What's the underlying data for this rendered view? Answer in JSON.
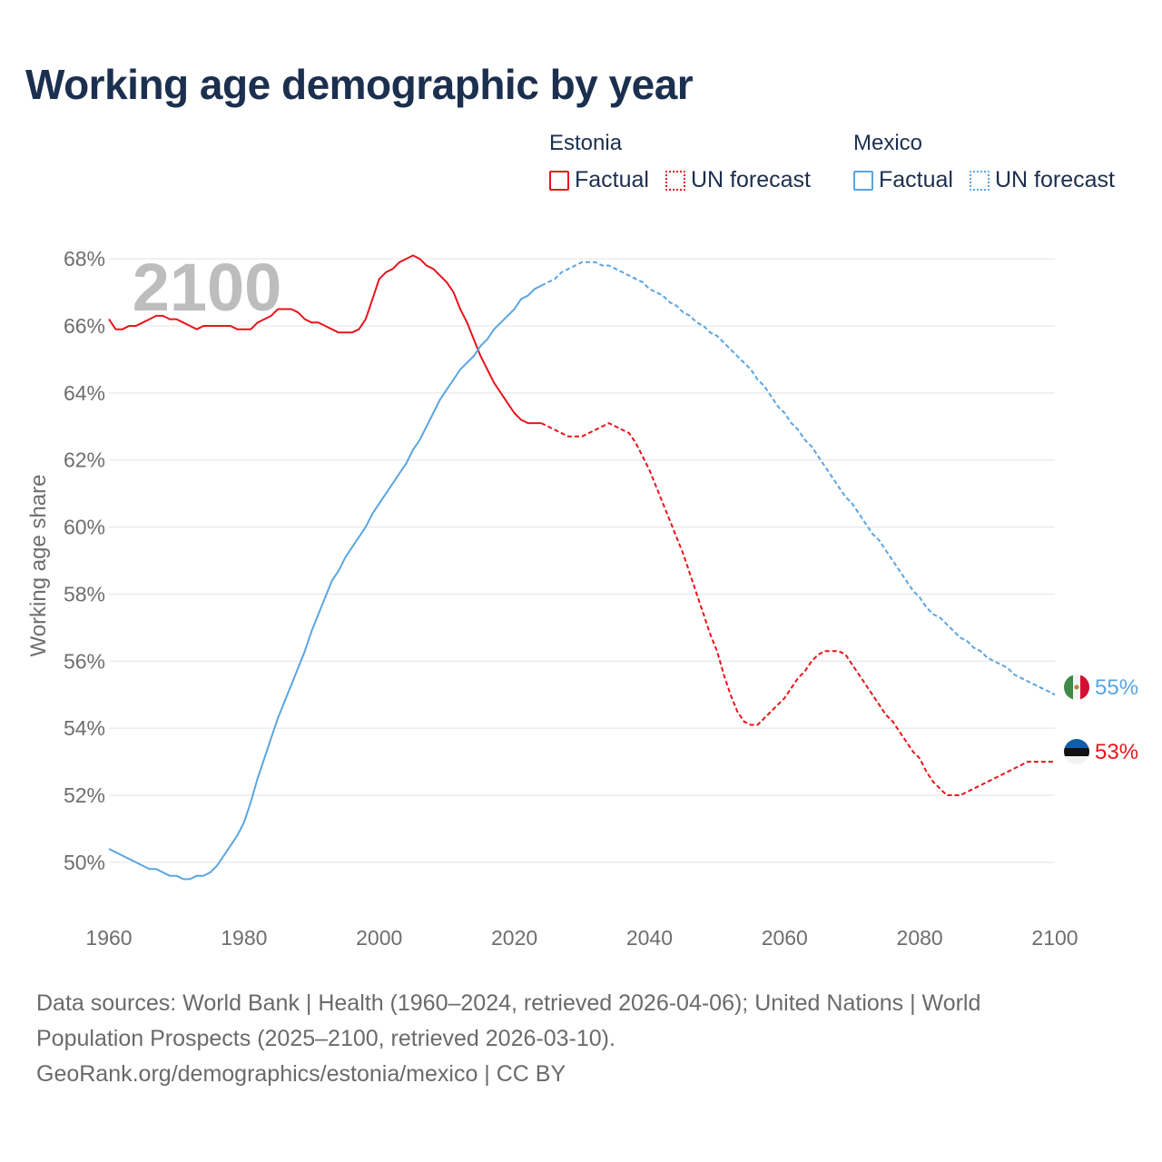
{
  "title": "Working age demographic by year",
  "year_label": "2100",
  "legend": [
    {
      "country": "Estonia",
      "color": "#e8141c",
      "items": [
        {
          "style": "solid",
          "label": "Factual"
        },
        {
          "style": "dotted",
          "label": "UN forecast"
        }
      ]
    },
    {
      "country": "Mexico",
      "color": "#5aa5e2",
      "items": [
        {
          "style": "solid",
          "label": "Factual"
        },
        {
          "style": "dotted",
          "label": "UN forecast"
        }
      ]
    }
  ],
  "footer": {
    "sources": "Data sources: World Bank | Health (1960–2024, retrieved 2026-04-06); United Nations | World Population Prospects (2025–2100, retrieved 2026-03-10).",
    "credit": "GeoRank.org/demographics/estonia/mexico | CC BY"
  },
  "chart_data": {
    "type": "line",
    "title": "Working age demographic by year",
    "xlabel": "",
    "ylabel": "Working age share",
    "xlim": [
      1960,
      2100
    ],
    "ylim": [
      48.4,
      69.6
    ],
    "x_ticks": [
      1960,
      1980,
      2000,
      2020,
      2040,
      2060,
      2080,
      2100
    ],
    "y_ticks": [
      50,
      52,
      54,
      56,
      58,
      60,
      62,
      64,
      66,
      68
    ],
    "y_tick_suffix": "%",
    "grid": true,
    "series": [
      {
        "name": "Estonia",
        "color": "#e8141c",
        "flag": "estonia-flag-icon",
        "end_label": "53%",
        "factual": [
          [
            1960,
            66.2
          ],
          [
            1961,
            65.9
          ],
          [
            1962,
            65.9
          ],
          [
            1963,
            66.0
          ],
          [
            1964,
            66.0
          ],
          [
            1965,
            66.1
          ],
          [
            1966,
            66.2
          ],
          [
            1967,
            66.3
          ],
          [
            1968,
            66.3
          ],
          [
            1969,
            66.2
          ],
          [
            1970,
            66.2
          ],
          [
            1971,
            66.1
          ],
          [
            1972,
            66.0
          ],
          [
            1973,
            65.9
          ],
          [
            1974,
            66.0
          ],
          [
            1975,
            66.0
          ],
          [
            1976,
            66.0
          ],
          [
            1977,
            66.0
          ],
          [
            1978,
            66.0
          ],
          [
            1979,
            65.9
          ],
          [
            1980,
            65.9
          ],
          [
            1981,
            65.9
          ],
          [
            1982,
            66.1
          ],
          [
            1983,
            66.2
          ],
          [
            1984,
            66.3
          ],
          [
            1985,
            66.5
          ],
          [
            1986,
            66.5
          ],
          [
            1987,
            66.5
          ],
          [
            1988,
            66.4
          ],
          [
            1989,
            66.2
          ],
          [
            1990,
            66.1
          ],
          [
            1991,
            66.1
          ],
          [
            1992,
            66.0
          ],
          [
            1993,
            65.9
          ],
          [
            1994,
            65.8
          ],
          [
            1995,
            65.8
          ],
          [
            1996,
            65.8
          ],
          [
            1997,
            65.9
          ],
          [
            1998,
            66.2
          ],
          [
            1999,
            66.8
          ],
          [
            2000,
            67.4
          ],
          [
            2001,
            67.6
          ],
          [
            2002,
            67.7
          ],
          [
            2003,
            67.9
          ],
          [
            2004,
            68.0
          ],
          [
            2005,
            68.1
          ],
          [
            2006,
            68.0
          ],
          [
            2007,
            67.8
          ],
          [
            2008,
            67.7
          ],
          [
            2009,
            67.5
          ],
          [
            2010,
            67.3
          ],
          [
            2011,
            67.0
          ],
          [
            2012,
            66.5
          ],
          [
            2013,
            66.1
          ],
          [
            2014,
            65.6
          ],
          [
            2015,
            65.1
          ],
          [
            2016,
            64.7
          ],
          [
            2017,
            64.3
          ],
          [
            2018,
            64.0
          ],
          [
            2019,
            63.7
          ],
          [
            2020,
            63.4
          ],
          [
            2021,
            63.2
          ],
          [
            2022,
            63.1
          ],
          [
            2023,
            63.1
          ],
          [
            2024,
            63.1
          ]
        ],
        "forecast": [
          [
            2024,
            63.1
          ],
          [
            2025,
            63.0
          ],
          [
            2026,
            62.9
          ],
          [
            2027,
            62.8
          ],
          [
            2028,
            62.7
          ],
          [
            2029,
            62.7
          ],
          [
            2030,
            62.7
          ],
          [
            2031,
            62.8
          ],
          [
            2032,
            62.9
          ],
          [
            2033,
            63.0
          ],
          [
            2034,
            63.1
          ],
          [
            2035,
            63.0
          ],
          [
            2036,
            62.9
          ],
          [
            2037,
            62.8
          ],
          [
            2038,
            62.5
          ],
          [
            2039,
            62.1
          ],
          [
            2040,
            61.7
          ],
          [
            2041,
            61.2
          ],
          [
            2042,
            60.7
          ],
          [
            2043,
            60.2
          ],
          [
            2044,
            59.7
          ],
          [
            2045,
            59.2
          ],
          [
            2046,
            58.6
          ],
          [
            2047,
            58.0
          ],
          [
            2048,
            57.4
          ],
          [
            2049,
            56.8
          ],
          [
            2050,
            56.3
          ],
          [
            2051,
            55.6
          ],
          [
            2052,
            55.0
          ],
          [
            2053,
            54.5
          ],
          [
            2054,
            54.2
          ],
          [
            2055,
            54.1
          ],
          [
            2056,
            54.1
          ],
          [
            2057,
            54.3
          ],
          [
            2058,
            54.5
          ],
          [
            2059,
            54.7
          ],
          [
            2060,
            54.9
          ],
          [
            2061,
            55.2
          ],
          [
            2062,
            55.5
          ],
          [
            2063,
            55.7
          ],
          [
            2064,
            56.0
          ],
          [
            2065,
            56.2
          ],
          [
            2066,
            56.3
          ],
          [
            2067,
            56.3
          ],
          [
            2068,
            56.3
          ],
          [
            2069,
            56.2
          ],
          [
            2070,
            55.9
          ],
          [
            2071,
            55.6
          ],
          [
            2072,
            55.3
          ],
          [
            2073,
            55.0
          ],
          [
            2074,
            54.7
          ],
          [
            2075,
            54.4
          ],
          [
            2076,
            54.2
          ],
          [
            2077,
            53.9
          ],
          [
            2078,
            53.6
          ],
          [
            2079,
            53.3
          ],
          [
            2080,
            53.1
          ],
          [
            2081,
            52.7
          ],
          [
            2082,
            52.4
          ],
          [
            2083,
            52.2
          ],
          [
            2084,
            52.0
          ],
          [
            2085,
            52.0
          ],
          [
            2086,
            52.0
          ],
          [
            2087,
            52.1
          ],
          [
            2088,
            52.2
          ],
          [
            2089,
            52.3
          ],
          [
            2090,
            52.4
          ],
          [
            2091,
            52.5
          ],
          [
            2092,
            52.6
          ],
          [
            2093,
            52.7
          ],
          [
            2094,
            52.8
          ],
          [
            2095,
            52.9
          ],
          [
            2096,
            53.0
          ],
          [
            2097,
            53.0
          ],
          [
            2098,
            53.0
          ],
          [
            2099,
            53.0
          ],
          [
            2100,
            53.0
          ]
        ]
      },
      {
        "name": "Mexico",
        "color": "#5aa5e2",
        "flag": "mexico-flag-icon",
        "end_label": "55%",
        "factual": [
          [
            1960,
            50.4
          ],
          [
            1961,
            50.3
          ],
          [
            1962,
            50.2
          ],
          [
            1963,
            50.1
          ],
          [
            1964,
            50.0
          ],
          [
            1965,
            49.9
          ],
          [
            1966,
            49.8
          ],
          [
            1967,
            49.8
          ],
          [
            1968,
            49.7
          ],
          [
            1969,
            49.6
          ],
          [
            1970,
            49.6
          ],
          [
            1971,
            49.5
          ],
          [
            1972,
            49.5
          ],
          [
            1973,
            49.6
          ],
          [
            1974,
            49.6
          ],
          [
            1975,
            49.7
          ],
          [
            1976,
            49.9
          ],
          [
            1977,
            50.2
          ],
          [
            1978,
            50.5
          ],
          [
            1979,
            50.8
          ],
          [
            1980,
            51.2
          ],
          [
            1981,
            51.8
          ],
          [
            1982,
            52.5
          ],
          [
            1983,
            53.1
          ],
          [
            1984,
            53.7
          ],
          [
            1985,
            54.3
          ],
          [
            1986,
            54.8
          ],
          [
            1987,
            55.3
          ],
          [
            1988,
            55.8
          ],
          [
            1989,
            56.3
          ],
          [
            1990,
            56.9
          ],
          [
            1991,
            57.4
          ],
          [
            1992,
            57.9
          ],
          [
            1993,
            58.4
          ],
          [
            1994,
            58.7
          ],
          [
            1995,
            59.1
          ],
          [
            1996,
            59.4
          ],
          [
            1997,
            59.7
          ],
          [
            1998,
            60.0
          ],
          [
            1999,
            60.4
          ],
          [
            2000,
            60.7
          ],
          [
            2001,
            61.0
          ],
          [
            2002,
            61.3
          ],
          [
            2003,
            61.6
          ],
          [
            2004,
            61.9
          ],
          [
            2005,
            62.3
          ],
          [
            2006,
            62.6
          ],
          [
            2007,
            63.0
          ],
          [
            2008,
            63.4
          ],
          [
            2009,
            63.8
          ],
          [
            2010,
            64.1
          ],
          [
            2011,
            64.4
          ],
          [
            2012,
            64.7
          ],
          [
            2013,
            64.9
          ],
          [
            2014,
            65.1
          ],
          [
            2015,
            65.4
          ],
          [
            2016,
            65.6
          ],
          [
            2017,
            65.9
          ],
          [
            2018,
            66.1
          ],
          [
            2019,
            66.3
          ],
          [
            2020,
            66.5
          ],
          [
            2021,
            66.8
          ],
          [
            2022,
            66.9
          ],
          [
            2023,
            67.1
          ],
          [
            2024,
            67.2
          ]
        ],
        "forecast": [
          [
            2024,
            67.2
          ],
          [
            2025,
            67.3
          ],
          [
            2026,
            67.4
          ],
          [
            2027,
            67.6
          ],
          [
            2028,
            67.7
          ],
          [
            2029,
            67.8
          ],
          [
            2030,
            67.9
          ],
          [
            2031,
            67.9
          ],
          [
            2032,
            67.9
          ],
          [
            2033,
            67.8
          ],
          [
            2034,
            67.8
          ],
          [
            2035,
            67.7
          ],
          [
            2036,
            67.6
          ],
          [
            2037,
            67.5
          ],
          [
            2038,
            67.4
          ],
          [
            2039,
            67.3
          ],
          [
            2040,
            67.1
          ],
          [
            2041,
            67.0
          ],
          [
            2042,
            66.9
          ],
          [
            2043,
            66.7
          ],
          [
            2044,
            66.6
          ],
          [
            2045,
            66.4
          ],
          [
            2046,
            66.3
          ],
          [
            2047,
            66.1
          ],
          [
            2048,
            66.0
          ],
          [
            2049,
            65.8
          ],
          [
            2050,
            65.7
          ],
          [
            2051,
            65.5
          ],
          [
            2052,
            65.3
          ],
          [
            2053,
            65.1
          ],
          [
            2054,
            64.9
          ],
          [
            2055,
            64.7
          ],
          [
            2056,
            64.4
          ],
          [
            2057,
            64.2
          ],
          [
            2058,
            63.9
          ],
          [
            2059,
            63.6
          ],
          [
            2060,
            63.4
          ],
          [
            2061,
            63.1
          ],
          [
            2062,
            62.9
          ],
          [
            2063,
            62.6
          ],
          [
            2064,
            62.4
          ],
          [
            2065,
            62.1
          ],
          [
            2066,
            61.8
          ],
          [
            2067,
            61.5
          ],
          [
            2068,
            61.2
          ],
          [
            2069,
            60.9
          ],
          [
            2070,
            60.7
          ],
          [
            2071,
            60.4
          ],
          [
            2072,
            60.1
          ],
          [
            2073,
            59.8
          ],
          [
            2074,
            59.6
          ],
          [
            2075,
            59.3
          ],
          [
            2076,
            59.0
          ],
          [
            2077,
            58.7
          ],
          [
            2078,
            58.4
          ],
          [
            2079,
            58.1
          ],
          [
            2080,
            57.9
          ],
          [
            2081,
            57.6
          ],
          [
            2082,
            57.4
          ],
          [
            2083,
            57.3
          ],
          [
            2084,
            57.1
          ],
          [
            2085,
            56.9
          ],
          [
            2086,
            56.7
          ],
          [
            2087,
            56.6
          ],
          [
            2088,
            56.4
          ],
          [
            2089,
            56.3
          ],
          [
            2090,
            56.1
          ],
          [
            2091,
            56.0
          ],
          [
            2092,
            55.9
          ],
          [
            2093,
            55.8
          ],
          [
            2094,
            55.6
          ],
          [
            2095,
            55.5
          ],
          [
            2096,
            55.4
          ],
          [
            2097,
            55.3
          ],
          [
            2098,
            55.2
          ],
          [
            2099,
            55.1
          ],
          [
            2100,
            55.0
          ]
        ]
      }
    ]
  }
}
